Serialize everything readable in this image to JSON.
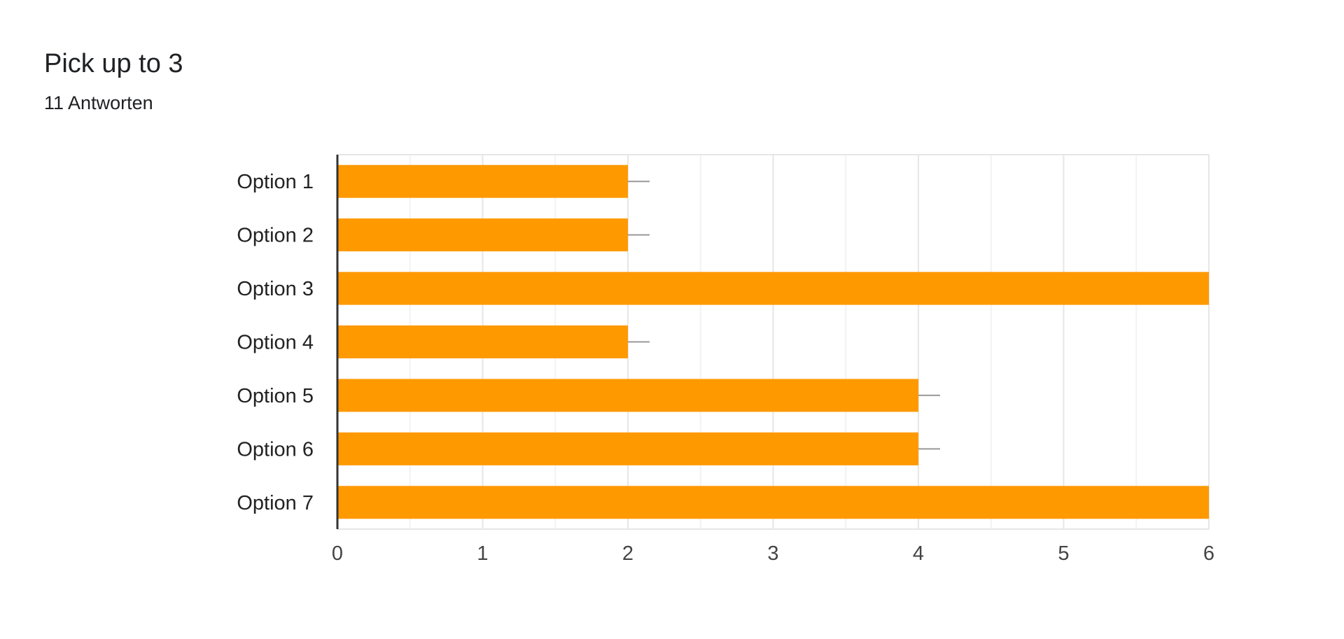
{
  "header": {
    "title": "Pick up to 3",
    "responses": "11 Antworten"
  },
  "colors": {
    "bar": "#ff9900",
    "grid_major": "#e6e6e6",
    "grid_minor": "#f2f2f2",
    "axis": "#333333",
    "error_bar": "#999999"
  },
  "chart_data": {
    "type": "bar",
    "orientation": "horizontal",
    "title": "Pick up to 3",
    "subtitle": "11 Antworten",
    "categories": [
      "Option 1",
      "Option 2",
      "Option 3",
      "Option 4",
      "Option 5",
      "Option 6",
      "Option 7"
    ],
    "values": [
      2,
      2,
      6,
      2,
      4,
      4,
      6
    ],
    "xlim": [
      0,
      6
    ],
    "xticks": [
      0,
      1,
      2,
      3,
      4,
      5,
      6
    ],
    "grid": true,
    "legend": "none"
  }
}
